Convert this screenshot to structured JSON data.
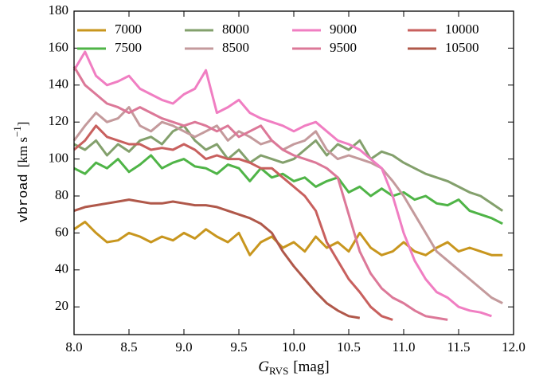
{
  "chart_data": {
    "type": "line",
    "xlabel": {
      "main": "G",
      "sub": "RVS",
      "unit": "[mag]"
    },
    "ylabel": {
      "name": "vbroad",
      "unit": "[km s",
      "exp": "−1",
      "close": "]"
    },
    "xlim": [
      8,
      12
    ],
    "ylim": [
      5,
      180
    ],
    "xticks": [
      {
        "value": 8,
        "label": "8.0"
      },
      {
        "value": 8.5,
        "label": "8.5"
      },
      {
        "value": 9,
        "label": "9.0"
      },
      {
        "value": 9.5,
        "label": "9.5"
      },
      {
        "value": 10,
        "label": "10.0"
      },
      {
        "value": 10.5,
        "label": "10.5"
      },
      {
        "value": 11,
        "label": "11.0"
      },
      {
        "value": 11.5,
        "label": "11.5"
      },
      {
        "value": 12,
        "label": "12.0"
      }
    ],
    "yticks": [
      20,
      40,
      60,
      80,
      100,
      120,
      140,
      160,
      180
    ],
    "x": [
      8.0,
      8.1,
      8.2,
      8.3,
      8.4,
      8.5,
      8.6,
      8.7,
      8.8,
      8.9,
      9.0,
      9.1,
      9.2,
      9.3,
      9.4,
      9.5,
      9.6,
      9.7,
      9.8,
      9.9,
      10.0,
      10.1,
      10.2,
      10.3,
      10.4,
      10.5,
      10.6,
      10.7,
      10.8,
      10.9,
      11.0,
      11.1,
      11.2,
      11.3,
      11.4,
      11.5,
      11.6,
      11.7,
      11.8,
      11.9
    ],
    "series": [
      {
        "name": "7000",
        "color": "#c8961e",
        "values": [
          62,
          66,
          60,
          55,
          56,
          60,
          58,
          55,
          58,
          56,
          60,
          57,
          62,
          58,
          55,
          60,
          48,
          55,
          58,
          52,
          55,
          50,
          58,
          52,
          55,
          50,
          60,
          52,
          48,
          50,
          55,
          50,
          48,
          52,
          55,
          50,
          52,
          50,
          48,
          48
        ]
      },
      {
        "name": "7500",
        "color": "#4fb447",
        "values": [
          95,
          92,
          98,
          95,
          100,
          93,
          97,
          102,
          95,
          98,
          100,
          96,
          95,
          92,
          97,
          95,
          88,
          95,
          90,
          92,
          88,
          90,
          85,
          88,
          90,
          82,
          85,
          80,
          84,
          80,
          82,
          78,
          80,
          76,
          75,
          78,
          72,
          70,
          68,
          65
        ]
      },
      {
        "name": "8000",
        "color": "#83a06c",
        "values": [
          108,
          105,
          110,
          102,
          108,
          104,
          110,
          112,
          108,
          115,
          118,
          110,
          105,
          108,
          100,
          105,
          98,
          102,
          100,
          98,
          100,
          105,
          110,
          102,
          108,
          105,
          110,
          100,
          104,
          102,
          98,
          95,
          92,
          90,
          88,
          85,
          82,
          80,
          76,
          72
        ]
      },
      {
        "name": "8500",
        "color": "#c49a9c",
        "values": [
          110,
          118,
          125,
          120,
          122,
          128,
          118,
          115,
          120,
          118,
          115,
          112,
          115,
          118,
          110,
          115,
          112,
          108,
          110,
          105,
          108,
          110,
          115,
          105,
          100,
          102,
          100,
          98,
          95,
          88,
          80,
          70,
          60,
          50,
          45,
          40,
          35,
          30,
          25,
          22
        ]
      },
      {
        "name": "9000",
        "color": "#f07ec2",
        "values": [
          148,
          158,
          145,
          140,
          142,
          145,
          138,
          135,
          132,
          130,
          135,
          138,
          148,
          125,
          128,
          132,
          125,
          122,
          120,
          118,
          115,
          118,
          120,
          115,
          110,
          108,
          105,
          100,
          95,
          80,
          60,
          45,
          35,
          28,
          25,
          20,
          18,
          17,
          15,
          null
        ]
      },
      {
        "name": "9500",
        "color": "#dc7898",
        "values": [
          150,
          140,
          135,
          130,
          128,
          125,
          128,
          125,
          122,
          120,
          118,
          120,
          118,
          115,
          118,
          112,
          115,
          118,
          110,
          105,
          102,
          100,
          98,
          95,
          90,
          70,
          50,
          38,
          30,
          25,
          22,
          18,
          15,
          14,
          13,
          null,
          null,
          null,
          null,
          null
        ]
      },
      {
        "name": "10000",
        "color": "#c8605e",
        "values": [
          105,
          110,
          118,
          112,
          110,
          108,
          108,
          105,
          106,
          105,
          108,
          105,
          100,
          102,
          100,
          100,
          98,
          95,
          95,
          90,
          85,
          80,
          72,
          55,
          45,
          35,
          28,
          20,
          15,
          13,
          null,
          null,
          null,
          null,
          null,
          null,
          null,
          null,
          null,
          null
        ]
      },
      {
        "name": "10500",
        "color": "#b0584a",
        "values": [
          72,
          74,
          75,
          76,
          77,
          78,
          77,
          76,
          76,
          77,
          76,
          75,
          75,
          74,
          72,
          70,
          68,
          65,
          60,
          50,
          42,
          35,
          28,
          22,
          18,
          15,
          14,
          null,
          null,
          null,
          null,
          null,
          null,
          null,
          null,
          null,
          null,
          null,
          null,
          null
        ]
      }
    ]
  }
}
